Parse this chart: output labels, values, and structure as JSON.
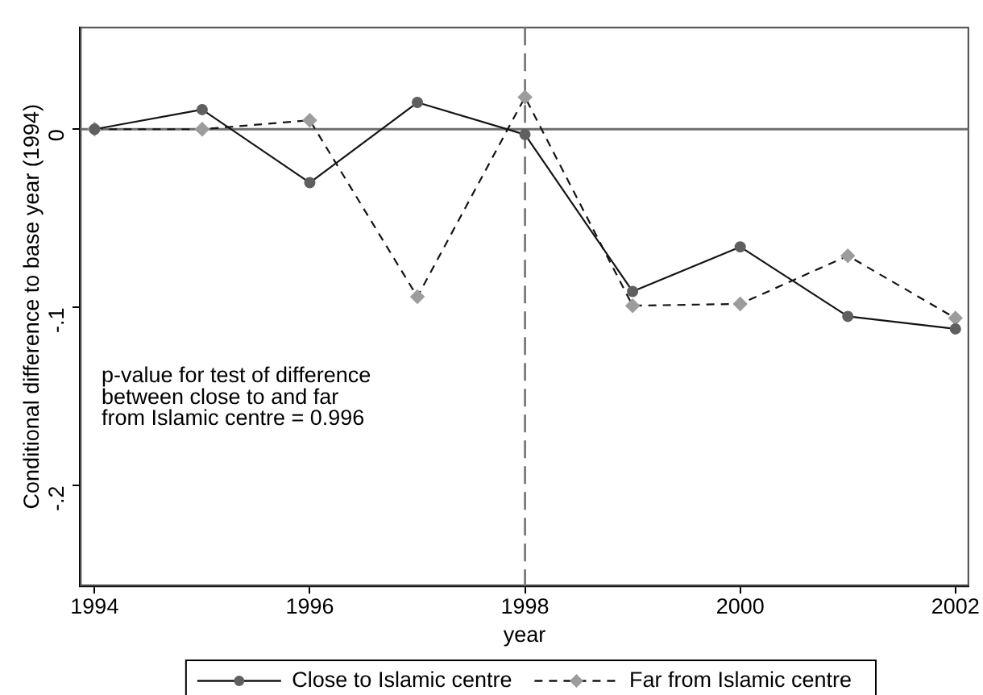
{
  "chart_data": {
    "type": "line",
    "xlabel": "year",
    "ylabel": "Conditional difference to base year (1994)",
    "x": [
      1994,
      1995,
      1996,
      1997,
      1998,
      1999,
      2000,
      2001,
      2002
    ],
    "series": [
      {
        "name": "Close to Islamic centre",
        "color": "#5f5f5f",
        "marker": "circle",
        "line_style": "solid",
        "values": [
          0,
          0.011,
          -0.03,
          0.015,
          -0.003,
          -0.091,
          -0.066,
          -0.105,
          -0.112
        ]
      },
      {
        "name": "Far from Islamic centre",
        "color": "#9c9c9c",
        "marker": "diamond",
        "line_style": "dashed",
        "values": [
          0,
          0,
          0.005,
          -0.094,
          0.018,
          -0.099,
          -0.098,
          -0.071,
          -0.106
        ]
      }
    ],
    "xlim": [
      1993.87,
      2002.12
    ],
    "xticks": [
      1994,
      1996,
      1998,
      2000,
      2002
    ],
    "ylim": [
      -0.256,
      0.057
    ],
    "yticks": [
      {
        "value": -0.2,
        "label": "-.2"
      },
      {
        "value": -0.1,
        "label": "-.1"
      },
      0
    ],
    "ref_lines": [
      {
        "axis": "y",
        "value": 0,
        "color": "#6e6e6e",
        "line_style": "solid"
      },
      {
        "axis": "x",
        "value": 1998,
        "color": "#7a7a7a",
        "line_style": "dashed"
      }
    ],
    "annotations": [
      "p-value for test of difference\nbetween close to and far\nfrom Islamic centre = 0.996"
    ],
    "grid": false,
    "legend": "bottom"
  }
}
